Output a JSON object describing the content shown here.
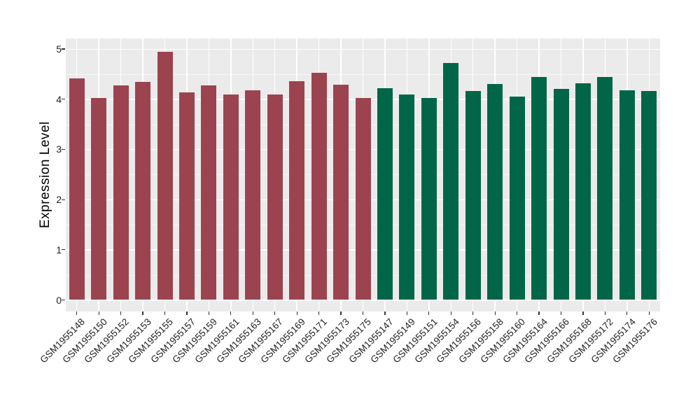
{
  "figure": {
    "panel_background": "#EBEBEB",
    "grid_color": "#FFFFFF",
    "outer_background": "#FFFFFF"
  },
  "chart_data": {
    "type": "bar",
    "title": "",
    "xlabel": "",
    "ylabel": "Expression Level",
    "ylim": [
      0,
      5
    ],
    "yticks": [
      0,
      1,
      2,
      3,
      4,
      5
    ],
    "grid": true,
    "legend": "none",
    "group_colors": [
      "#9B4450",
      "#006647"
    ],
    "bars": [
      {
        "label": "GSM1955148",
        "value": 4.41,
        "group": 0
      },
      {
        "label": "GSM1955150",
        "value": 4.03,
        "group": 0
      },
      {
        "label": "GSM1955152",
        "value": 4.27,
        "group": 0
      },
      {
        "label": "GSM1955153",
        "value": 4.35,
        "group": 0
      },
      {
        "label": "GSM1955155",
        "value": 4.95,
        "group": 0
      },
      {
        "label": "GSM1955157",
        "value": 4.14,
        "group": 0
      },
      {
        "label": "GSM1955159",
        "value": 4.28,
        "group": 0
      },
      {
        "label": "GSM1955161",
        "value": 4.09,
        "group": 0
      },
      {
        "label": "GSM1955163",
        "value": 4.18,
        "group": 0
      },
      {
        "label": "GSM1955167",
        "value": 4.09,
        "group": 0
      },
      {
        "label": "GSM1955169",
        "value": 4.36,
        "group": 0
      },
      {
        "label": "GSM1955171",
        "value": 4.53,
        "group": 0
      },
      {
        "label": "GSM1955173",
        "value": 4.29,
        "group": 0
      },
      {
        "label": "GSM1955175",
        "value": 4.03,
        "group": 0
      },
      {
        "label": "GSM1955147",
        "value": 4.22,
        "group": 1
      },
      {
        "label": "GSM1955149",
        "value": 4.09,
        "group": 1
      },
      {
        "label": "GSM1955151",
        "value": 4.03,
        "group": 1
      },
      {
        "label": "GSM1955154",
        "value": 4.72,
        "group": 1
      },
      {
        "label": "GSM1955156",
        "value": 4.16,
        "group": 1
      },
      {
        "label": "GSM1955158",
        "value": 4.3,
        "group": 1
      },
      {
        "label": "GSM1955160",
        "value": 4.05,
        "group": 1
      },
      {
        "label": "GSM1955164",
        "value": 4.44,
        "group": 1
      },
      {
        "label": "GSM1955166",
        "value": 4.21,
        "group": 1
      },
      {
        "label": "GSM1955168",
        "value": 4.32,
        "group": 1
      },
      {
        "label": "GSM1955172",
        "value": 4.44,
        "group": 1
      },
      {
        "label": "GSM1955174",
        "value": 4.18,
        "group": 1
      },
      {
        "label": "GSM1955176",
        "value": 4.16,
        "group": 1
      }
    ]
  }
}
